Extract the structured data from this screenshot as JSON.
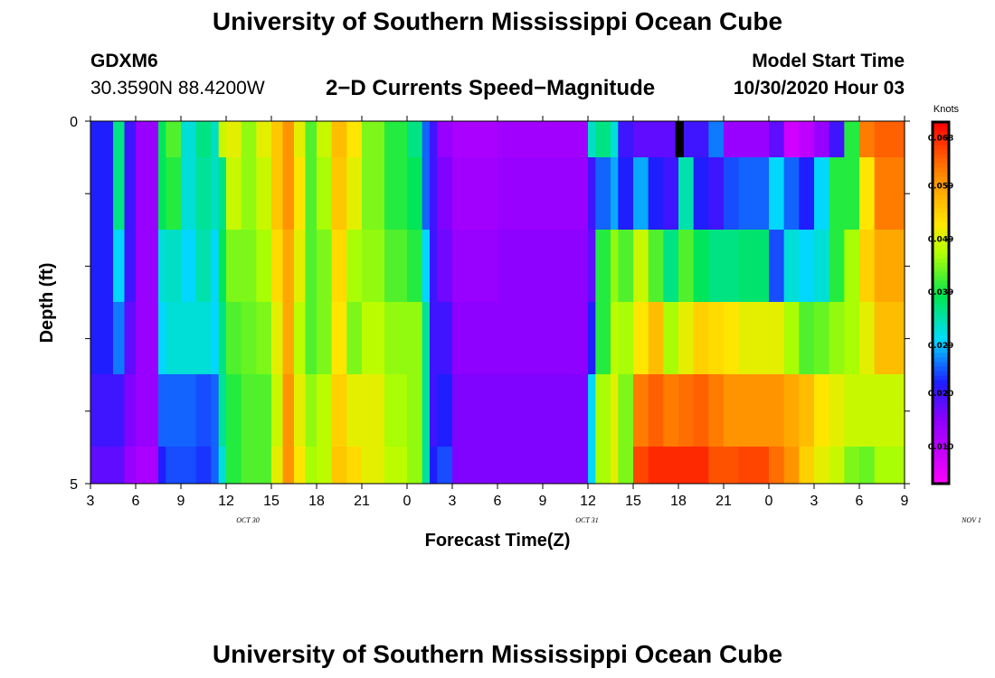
{
  "header": {
    "title": "University of Southern Mississippi Ocean Cube",
    "station": "GDXM6",
    "coords": "30.3590N 88.4200W",
    "product": "2−D Currents Speed−Magnitude",
    "start_label": "Model Start Time",
    "start_value": "10/30/2020 Hour 03"
  },
  "footer": {
    "title": "University of Southern Mississippi Ocean Cube"
  },
  "chart_data": {
    "type": "heatmap",
    "title": "2-D Currents Speed-Magnitude",
    "xlabel": "Forecast Time(Z)",
    "ylabel": "Depth (ft)",
    "ylim": [
      0,
      5
    ],
    "y_tick_labels": [
      "0",
      "5"
    ],
    "x_tick_labels": [
      "3",
      "6",
      "9",
      "12",
      "15",
      "18",
      "21",
      "0",
      "3",
      "6",
      "9",
      "12",
      "15",
      "18",
      "21",
      "0",
      "3",
      "6",
      "9"
    ],
    "date_labels": [
      {
        "text": "OCT  30",
        "hours_from_start": 10.5
      },
      {
        "text": "OCT  31",
        "hours_from_start": 33
      },
      {
        "text": "NOV  1",
        "hours_from_start": 58.5
      }
    ],
    "x_range_hours": [
      0,
      54
    ],
    "depth_bins": [
      "0-0.5",
      "0.5-1.5",
      "1.5-2.5",
      "2.5-3.5",
      "3.5-4.5",
      "4.5-5"
    ],
    "colorbar": {
      "unit": "Knots",
      "min": 0.003,
      "max": 0.071,
      "ticks": [
        "0.068",
        "0.059",
        "0.049",
        "0.039",
        "0.029",
        "0.020",
        "0.010"
      ],
      "tick_values": [
        0.068,
        0.059,
        0.049,
        0.039,
        0.029,
        0.02,
        0.01
      ]
    },
    "time_segments": [
      {
        "start": 0,
        "end": 1.5,
        "values": [
          0.022,
          0.022,
          0.022,
          0.022,
          0.02,
          0.018
        ]
      },
      {
        "start": 1.5,
        "end": 2.25,
        "values": [
          0.036,
          0.036,
          0.03,
          0.026,
          0.02,
          0.018
        ]
      },
      {
        "start": 2.25,
        "end": 3,
        "values": [
          0.02,
          0.02,
          0.02,
          0.018,
          0.016,
          0.014
        ]
      },
      {
        "start": 3,
        "end": 4.5,
        "values": [
          0.014,
          0.014,
          0.014,
          0.014,
          0.014,
          0.012
        ]
      },
      {
        "start": 4.5,
        "end": 5,
        "values": [
          0.038,
          0.038,
          0.032,
          0.03,
          0.025,
          0.022
        ]
      },
      {
        "start": 5,
        "end": 6,
        "values": [
          0.042,
          0.04,
          0.033,
          0.032,
          0.025,
          0.024
        ]
      },
      {
        "start": 6,
        "end": 7,
        "values": [
          0.032,
          0.032,
          0.03,
          0.032,
          0.025,
          0.024
        ]
      },
      {
        "start": 7,
        "end": 8,
        "values": [
          0.036,
          0.035,
          0.034,
          0.032,
          0.024,
          0.023
        ]
      },
      {
        "start": 8,
        "end": 8.5,
        "values": [
          0.033,
          0.033,
          0.03,
          0.03,
          0.025,
          0.025
        ]
      },
      {
        "start": 8.5,
        "end": 9,
        "values": [
          0.048,
          0.036,
          0.038,
          0.036,
          0.035,
          0.032
        ]
      },
      {
        "start": 9,
        "end": 10,
        "values": [
          0.05,
          0.048,
          0.044,
          0.042,
          0.04,
          0.04
        ]
      },
      {
        "start": 10,
        "end": 11,
        "values": [
          0.045,
          0.045,
          0.044,
          0.043,
          0.042,
          0.042
        ]
      },
      {
        "start": 11,
        "end": 12,
        "values": [
          0.05,
          0.048,
          0.046,
          0.044,
          0.042,
          0.042
        ]
      },
      {
        "start": 12,
        "end": 12.75,
        "values": [
          0.055,
          0.055,
          0.053,
          0.05,
          0.048,
          0.05
        ]
      },
      {
        "start": 12.75,
        "end": 13.5,
        "values": [
          0.06,
          0.06,
          0.058,
          0.058,
          0.06,
          0.06
        ]
      },
      {
        "start": 13.5,
        "end": 14.25,
        "values": [
          0.05,
          0.052,
          0.05,
          0.047,
          0.05,
          0.052
        ]
      },
      {
        "start": 14.25,
        "end": 15,
        "values": [
          0.042,
          0.042,
          0.042,
          0.042,
          0.045,
          0.046
        ]
      },
      {
        "start": 15,
        "end": 16,
        "values": [
          0.048,
          0.046,
          0.044,
          0.044,
          0.047,
          0.047
        ]
      },
      {
        "start": 16,
        "end": 17,
        "values": [
          0.056,
          0.055,
          0.053,
          0.052,
          0.054,
          0.055
        ]
      },
      {
        "start": 17,
        "end": 18,
        "values": [
          0.052,
          0.05,
          0.046,
          0.044,
          0.05,
          0.053
        ]
      },
      {
        "start": 18,
        "end": 19.5,
        "values": [
          0.044,
          0.044,
          0.045,
          0.047,
          0.05,
          0.05
        ]
      },
      {
        "start": 19.5,
        "end": 21,
        "values": [
          0.04,
          0.04,
          0.042,
          0.045,
          0.046,
          0.047
        ]
      },
      {
        "start": 21,
        "end": 22,
        "values": [
          0.036,
          0.038,
          0.04,
          0.045,
          0.045,
          0.045
        ]
      },
      {
        "start": 22,
        "end": 22.5,
        "values": [
          0.025,
          0.025,
          0.03,
          0.035,
          0.035,
          0.035
        ]
      },
      {
        "start": 22.5,
        "end": 23,
        "values": [
          0.02,
          0.02,
          0.02,
          0.02,
          0.02,
          0.022
        ]
      },
      {
        "start": 23,
        "end": 24,
        "values": [
          0.014,
          0.016,
          0.017,
          0.02,
          0.022,
          0.024
        ]
      },
      {
        "start": 24,
        "end": 27,
        "values": [
          0.012,
          0.013,
          0.014,
          0.015,
          0.016,
          0.016
        ]
      },
      {
        "start": 27,
        "end": 33,
        "values": [
          0.013,
          0.014,
          0.015,
          0.015,
          0.016,
          0.016
        ]
      },
      {
        "start": 33,
        "end": 33.5,
        "values": [
          0.033,
          0.02,
          0.018,
          0.022,
          0.03,
          0.03
        ]
      },
      {
        "start": 33.5,
        "end": 34.5,
        "values": [
          0.036,
          0.025,
          0.04,
          0.04,
          0.046,
          0.046
        ]
      },
      {
        "start": 34.5,
        "end": 35,
        "values": [
          0.032,
          0.028,
          0.045,
          0.047,
          0.05,
          0.05
        ]
      },
      {
        "start": 35,
        "end": 36,
        "values": [
          0.02,
          0.022,
          0.042,
          0.046,
          0.044,
          0.044
        ]
      },
      {
        "start": 36,
        "end": 37,
        "values": [
          0.018,
          0.028,
          0.048,
          0.052,
          0.062,
          0.066
        ]
      },
      {
        "start": 37,
        "end": 38,
        "values": [
          0.018,
          0.022,
          0.042,
          0.056,
          0.064,
          0.068
        ]
      },
      {
        "start": 38,
        "end": 39,
        "values": [
          0.018,
          0.02,
          0.036,
          0.046,
          0.062,
          0.068
        ]
      },
      {
        "start": 39,
        "end": 40,
        "values": [
          0.02,
          0.034,
          0.042,
          0.05,
          0.063,
          0.068
        ]
      },
      {
        "start": 40,
        "end": 41,
        "values": [
          0.02,
          0.022,
          0.038,
          0.054,
          0.064,
          0.068
        ]
      },
      {
        "start": 41,
        "end": 42,
        "values": [
          0.026,
          0.02,
          0.036,
          0.053,
          0.062,
          0.065
        ]
      },
      {
        "start": 42,
        "end": 43,
        "values": [
          0.014,
          0.024,
          0.036,
          0.052,
          0.06,
          0.065
        ]
      },
      {
        "start": 43,
        "end": 45,
        "values": [
          0.014,
          0.025,
          0.037,
          0.05,
          0.06,
          0.066
        ]
      },
      {
        "start": 45,
        "end": 46,
        "values": [
          0.018,
          0.03,
          0.024,
          0.05,
          0.06,
          0.063
        ]
      },
      {
        "start": 46,
        "end": 47,
        "values": [
          0.008,
          0.025,
          0.032,
          0.046,
          0.058,
          0.06
        ]
      },
      {
        "start": 47,
        "end": 48,
        "values": [
          0.01,
          0.022,
          0.03,
          0.042,
          0.056,
          0.054
        ]
      },
      {
        "start": 48,
        "end": 49,
        "values": [
          0.014,
          0.03,
          0.032,
          0.043,
          0.052,
          0.05
        ]
      },
      {
        "start": 49,
        "end": 50,
        "values": [
          0.02,
          0.04,
          0.04,
          0.045,
          0.05,
          0.048
        ]
      },
      {
        "start": 50,
        "end": 51,
        "values": [
          0.04,
          0.04,
          0.046,
          0.046,
          0.048,
          0.044
        ]
      },
      {
        "start": 51,
        "end": 52,
        "values": [
          0.062,
          0.052,
          0.054,
          0.05,
          0.048,
          0.043
        ]
      },
      {
        "start": 52,
        "end": 54,
        "values": [
          0.064,
          0.062,
          0.058,
          0.056,
          0.048,
          0.046
        ]
      }
    ],
    "missing_cells": [
      {
        "start": 38.8,
        "end": 39.35,
        "depth_bin": 0
      }
    ]
  }
}
